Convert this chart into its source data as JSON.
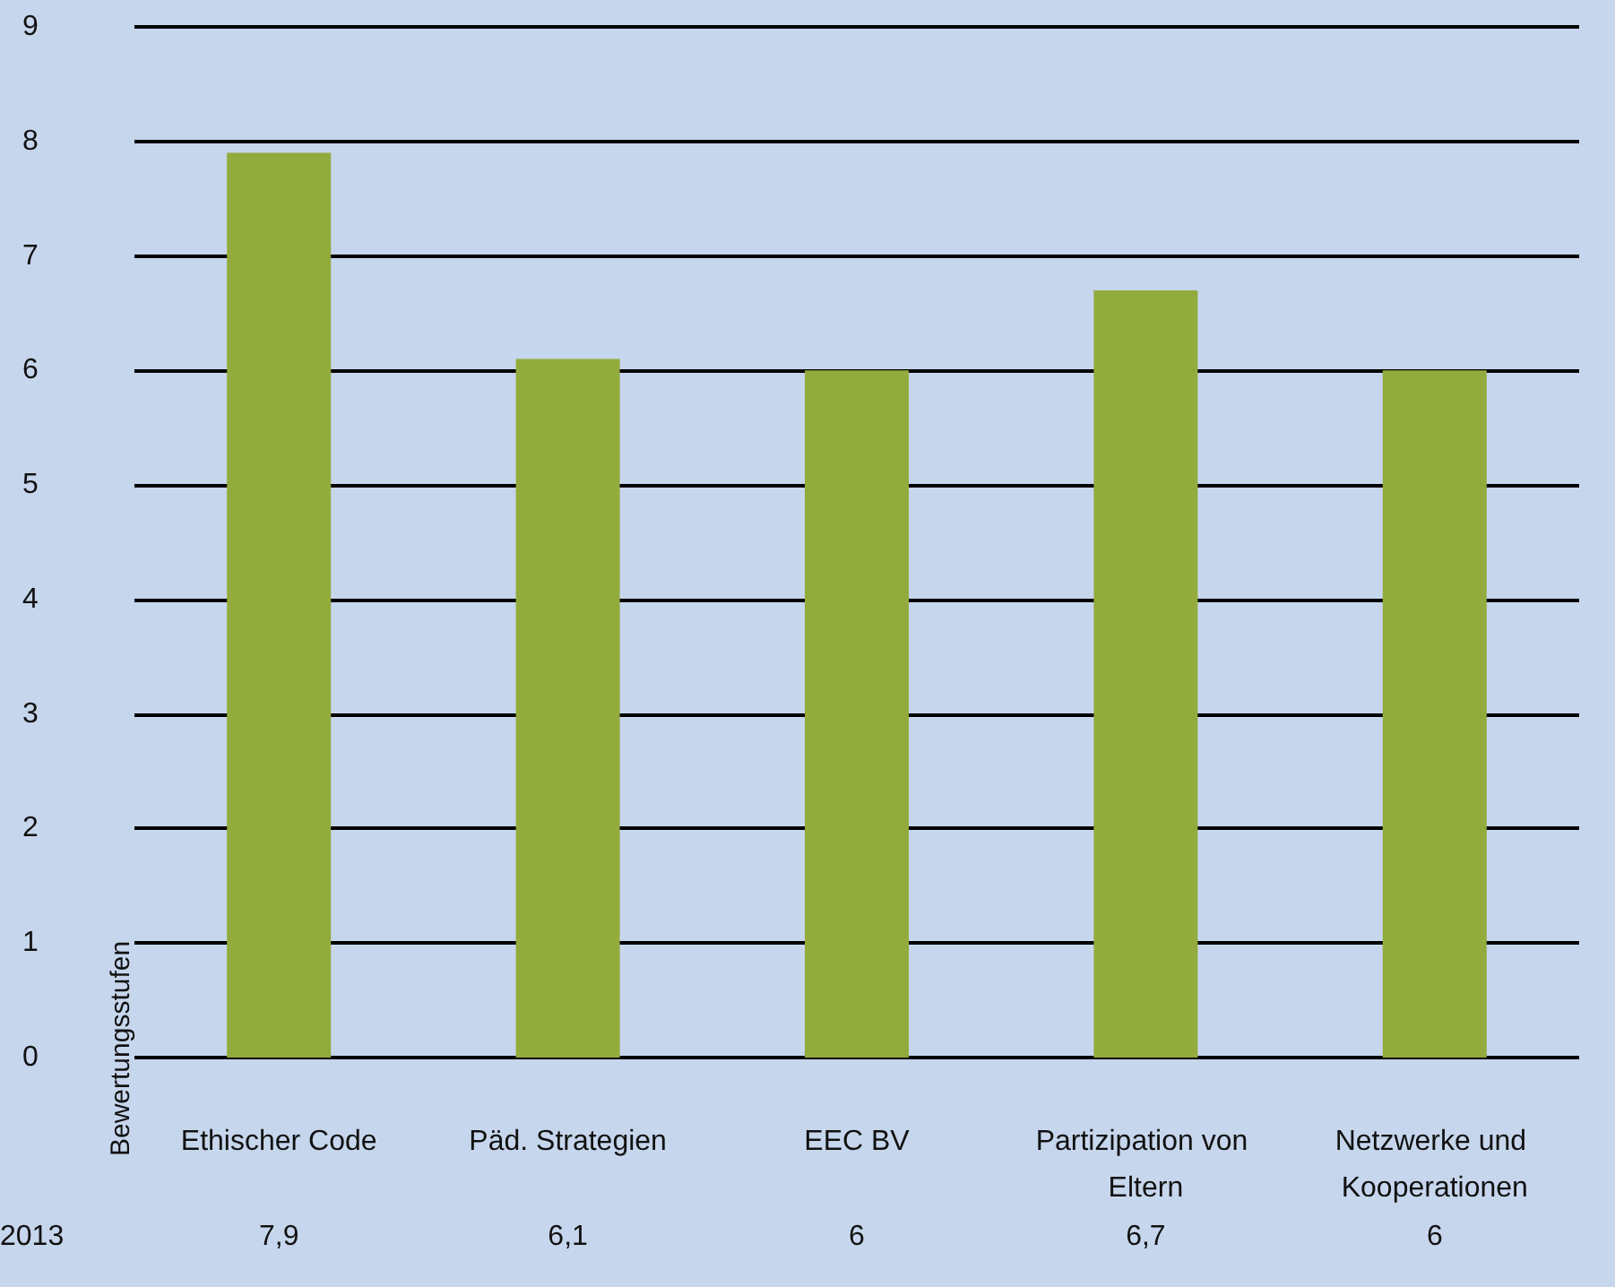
{
  "chart_data": {
    "type": "bar",
    "ylabel": "Bewertungsstufen",
    "categories": [
      "Ethischer Code",
      "Päd. Strategien",
      "EEC BV",
      "Partizipation von Eltern",
      "Netzwerke und Kooperationen"
    ],
    "series": [
      {
        "name": "2013",
        "color": "#93ab3c",
        "values": [
          7.9,
          6.1,
          6,
          6.7,
          6
        ],
        "value_labels": [
          "7,9",
          "6,1",
          "6",
          "6,7",
          "6"
        ]
      }
    ],
    "ylim": [
      0,
      9
    ],
    "yticks": [
      0,
      1,
      2,
      3,
      4,
      5,
      6,
      7,
      8,
      9
    ],
    "grid": "y",
    "legend": false
  }
}
